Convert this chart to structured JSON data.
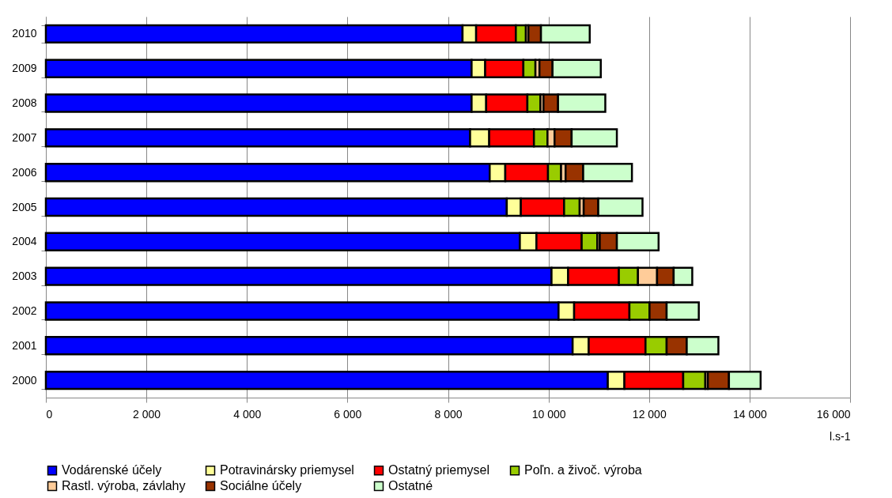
{
  "chart_data": {
    "type": "bar",
    "orientation": "horizontal",
    "stacked": true,
    "xlabel": "l.s-1",
    "categories": [
      "2010",
      "2009",
      "2008",
      "2007",
      "2006",
      "2005",
      "2004",
      "2003",
      "2002",
      "2001",
      "2000"
    ],
    "series": [
      {
        "name": "Vodárenské účely",
        "color": "#0000ff",
        "values": [
          8290,
          8470,
          8470,
          8440,
          8830,
          9170,
          9430,
          10060,
          10200,
          10480,
          11180
        ]
      },
      {
        "name": "Potravinársky priemysel",
        "color": "#ffff99",
        "values": [
          270,
          270,
          290,
          380,
          310,
          280,
          330,
          330,
          310,
          320,
          330
        ]
      },
      {
        "name": "Ostatný priemysel",
        "color": "#ff0000",
        "values": [
          790,
          760,
          820,
          890,
          850,
          860,
          900,
          1010,
          1100,
          1130,
          1170
        ]
      },
      {
        "name": "Poľn. a živoč. výroba",
        "color": "#99cc00",
        "values": [
          200,
          240,
          260,
          270,
          260,
          310,
          310,
          380,
          400,
          420,
          440
        ]
      },
      {
        "name": "Rastl. výroba, závlahy",
        "color": "#ffcc99",
        "values": [
          50,
          80,
          60,
          140,
          90,
          80,
          50,
          380,
          null,
          null,
          50
        ]
      },
      {
        "name": "Sociálne účely",
        "color": "#993300",
        "values": [
          250,
          260,
          290,
          340,
          350,
          290,
          340,
          330,
          340,
          400,
          420
        ]
      },
      {
        "name": "Ostatné",
        "color": "#ccffcc",
        "values": [
          970,
          960,
          940,
          900,
          970,
          880,
          830,
          370,
          640,
          630,
          630
        ]
      }
    ],
    "xlim": [
      0,
      16000
    ],
    "xticks": [
      0,
      {
        "value": 2000,
        "label": "2 000"
      },
      {
        "value": 4000,
        "label": "4 000"
      },
      {
        "value": 6000,
        "label": "6 000"
      },
      {
        "value": 8000,
        "label": "8 000"
      },
      {
        "value": 10000,
        "label": "10 000"
      },
      {
        "value": 12000,
        "label": "12 000"
      },
      {
        "value": 14000,
        "label": "14 000"
      },
      {
        "value": 16000,
        "label": "16 000"
      }
    ],
    "grid": "x",
    "legend": "bottom"
  }
}
